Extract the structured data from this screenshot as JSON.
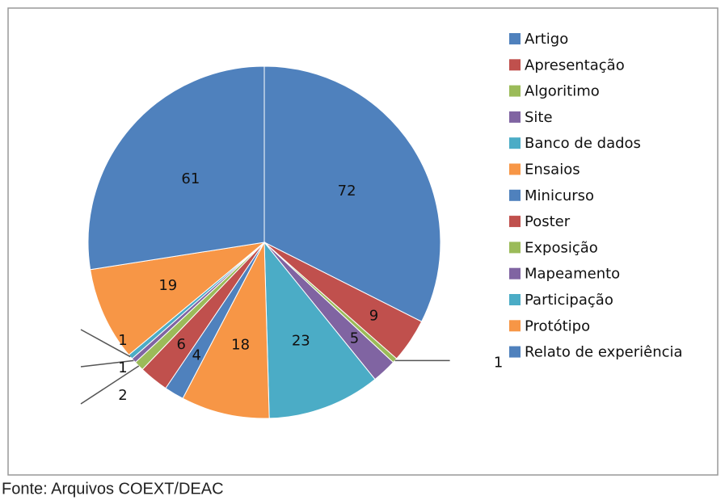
{
  "chart_data": {
    "type": "pie",
    "categories": [
      "Artigo",
      "Apresentação",
      "Algoritimo",
      "Site",
      "Banco de dados",
      "Ensaios",
      "Minicurso",
      "Poster",
      "Exposição",
      "Mapeamento",
      "Participação",
      "Protótipo",
      "Relato de experiência"
    ],
    "values": [
      72,
      9,
      1,
      5,
      23,
      18,
      4,
      6,
      2,
      1,
      1,
      19,
      61
    ],
    "colors": [
      "#4f81bd",
      "#c0504d",
      "#9bbb59",
      "#8064a2",
      "#4bacc6",
      "#f79646",
      "#4f81bd",
      "#c0504d",
      "#9bbb59",
      "#8064a2",
      "#4bacc6",
      "#f79646",
      "#4f81bd"
    ],
    "legend": "right"
  },
  "source": "Fonte: Arquivos COEXT/DEAC"
}
